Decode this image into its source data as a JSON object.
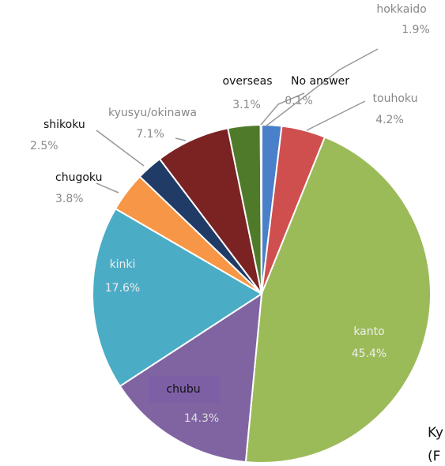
{
  "chart_data": {
    "type": "pie",
    "categories": [
      "hokkaido",
      "touhoku",
      "kanto",
      "chubu",
      "kinki",
      "chugoku",
      "shikoku",
      "kyusyu/okinawa",
      "overseas",
      "No answer"
    ],
    "values": [
      1.9,
      4.2,
      45.4,
      14.3,
      17.6,
      3.8,
      2.5,
      7.1,
      3.1,
      0.1
    ],
    "value_labels": [
      "1.9%",
      "4.2%",
      "45.4%",
      "14.3%",
      "17.6%",
      "3.8%",
      "2.5%",
      "7.1%",
      "3.1%",
      "0.1%"
    ],
    "colors": [
      "#4a7fc9",
      "#cf4f4f",
      "#9bbb59",
      "#8064a2",
      "#4bacc6",
      "#f79646",
      "#1f3b66",
      "#7b2222",
      "#4f7a2a",
      "#c0c0c0"
    ],
    "cropped_text": [
      "Ky",
      "(F"
    ]
  }
}
